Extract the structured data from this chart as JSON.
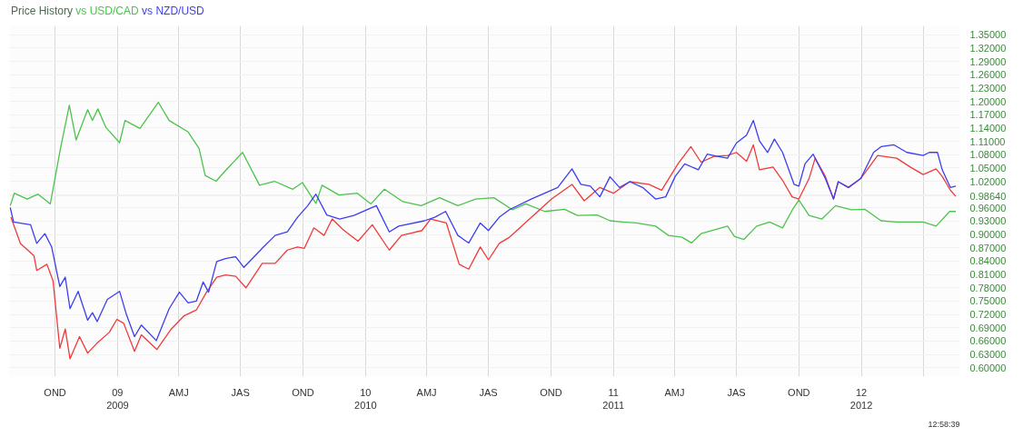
{
  "chart_data": {
    "type": "line",
    "title": "Price History",
    "legend": "top left",
    "grid": true,
    "xlim": [
      "2008-07-26",
      "2012-05-25"
    ],
    "ylim": [
      0.58,
      1.37
    ],
    "xticks": [
      {
        "value": "2008-10-01",
        "label": "OND"
      },
      {
        "value": "2009-01-01",
        "label": "09\n2009"
      },
      {
        "value": "2009-04-01",
        "label": "AMJ"
      },
      {
        "value": "2009-07-01",
        "label": "JAS"
      },
      {
        "value": "2009-10-01",
        "label": "OND"
      },
      {
        "value": "2010-01-01",
        "label": "10\n2010"
      },
      {
        "value": "2010-04-01",
        "label": "AMJ"
      },
      {
        "value": "2010-07-01",
        "label": "JAS"
      },
      {
        "value": "2010-10-01",
        "label": "OND"
      },
      {
        "value": "2011-01-01",
        "label": "11\n2011"
      },
      {
        "value": "2011-04-01",
        "label": "AMJ"
      },
      {
        "value": "2011-07-01",
        "label": "JAS"
      },
      {
        "value": "2011-10-01",
        "label": "OND"
      },
      {
        "value": "2012-01-01",
        "label": "12\n2012"
      },
      {
        "value": "2012-04-01",
        "label": null
      }
    ],
    "yticks": [
      {
        "value": 0.6,
        "label": "0.60000"
      },
      {
        "value": 0.63,
        "label": "0.63000"
      },
      {
        "value": 0.66,
        "label": "0.66000"
      },
      {
        "value": 0.69,
        "label": "0.69000"
      },
      {
        "value": 0.72,
        "label": "0.72000"
      },
      {
        "value": 0.75,
        "label": "0.75000"
      },
      {
        "value": 0.78,
        "label": "0.78000"
      },
      {
        "value": 0.81,
        "label": "0.81000"
      },
      {
        "value": 0.84,
        "label": "0.84000"
      },
      {
        "value": 0.87,
        "label": "0.87000"
      },
      {
        "value": 0.9,
        "label": "0.90000"
      },
      {
        "value": 0.93,
        "label": "0.93000"
      },
      {
        "value": 0.96,
        "label": "0.96000"
      },
      {
        "value": 0.9864,
        "label": "0.98640"
      },
      {
        "value": 0.99,
        "label": null
      },
      {
        "value": 1.02,
        "label": "1.02000"
      },
      {
        "value": 1.05,
        "label": "1.05000"
      },
      {
        "value": 1.08,
        "label": "1.08000"
      },
      {
        "value": 1.11,
        "label": "1.11000"
      },
      {
        "value": 1.14,
        "label": "1.14000"
      },
      {
        "value": 1.17,
        "label": "1.17000"
      },
      {
        "value": 1.2,
        "label": "1.20000"
      },
      {
        "value": 1.23,
        "label": "1.23000"
      },
      {
        "value": 1.26,
        "label": "1.26000"
      },
      {
        "value": 1.29,
        "label": "1.29000"
      },
      {
        "value": 1.32,
        "label": "1.32000"
      },
      {
        "value": 1.35,
        "label": "1.35000"
      }
    ],
    "annotations": [
      "12:58:39"
    ],
    "series": [
      {
        "name": "vs USD/CAD",
        "color": "#4cc34c",
        "x": [
          "2008-07-27",
          "2008-08-02",
          "2008-08-21",
          "2008-09-06",
          "2008-09-24",
          "2008-10-09",
          "2008-10-22",
          "2008-11-01",
          "2008-11-18",
          "2008-11-25",
          "2008-12-03",
          "2008-12-15",
          "2009-01-04",
          "2009-01-12",
          "2009-02-03",
          "2009-03-02",
          "2009-03-18",
          "2009-04-15",
          "2009-05-01",
          "2009-05-10",
          "2009-05-26",
          "2009-06-09",
          "2009-07-04",
          "2009-07-29",
          "2009-08-20",
          "2009-09-16",
          "2009-09-30",
          "2009-10-20",
          "2009-10-29",
          "2009-11-23",
          "2009-12-20",
          "2010-01-09",
          "2010-01-29",
          "2010-02-25",
          "2010-03-24",
          "2010-04-20",
          "2010-05-17",
          "2010-06-12",
          "2010-07-09",
          "2010-08-05",
          "2010-08-25",
          "2010-09-22",
          "2010-10-21",
          "2010-11-09",
          "2010-12-08",
          "2010-12-27",
          "2011-01-15",
          "2011-02-04",
          "2011-03-04",
          "2011-03-23",
          "2011-04-12",
          "2011-04-26",
          "2011-05-10",
          "2011-06-18",
          "2011-06-28",
          "2011-07-12",
          "2011-07-31",
          "2011-08-19",
          "2011-09-07",
          "2011-09-22",
          "2011-10-01",
          "2011-10-16",
          "2011-11-04",
          "2011-11-24",
          "2011-12-17",
          "2012-01-06",
          "2012-01-30",
          "2012-02-22",
          "2012-04-01",
          "2012-04-20",
          "2012-05-10",
          "2012-05-19"
        ],
        "values": [
          0.965,
          0.993,
          0.98,
          0.991,
          0.969,
          1.094,
          1.191,
          1.113,
          1.181,
          1.157,
          1.183,
          1.141,
          1.107,
          1.157,
          1.139,
          1.198,
          1.157,
          1.131,
          1.094,
          1.033,
          1.02,
          1.044,
          1.085,
          1.011,
          1.02,
          1.002,
          1.017,
          0.97,
          1.011,
          0.989,
          0.993,
          0.969,
          1.002,
          0.974,
          0.965,
          0.983,
          0.965,
          0.98,
          0.983,
          0.956,
          0.969,
          0.952,
          0.957,
          0.943,
          0.944,
          0.931,
          0.928,
          0.926,
          0.919,
          0.898,
          0.894,
          0.881,
          0.902,
          0.919,
          0.896,
          0.889,
          0.919,
          0.928,
          0.915,
          0.957,
          0.978,
          0.943,
          0.935,
          0.965,
          0.956,
          0.957,
          0.931,
          0.928,
          0.928,
          0.919,
          0.952,
          0.952
        ]
      },
      {
        "color": "#f03a3a",
        "x": [
          "2008-07-28",
          "2008-08-11",
          "2008-08-31",
          "2008-09-04",
          "2008-09-19",
          "2008-09-28",
          "2008-10-08",
          "2008-10-16",
          "2008-10-23",
          "2008-11-06",
          "2008-11-18",
          "2008-12-01",
          "2008-12-20",
          "2008-12-31",
          "2009-01-10",
          "2009-01-26",
          "2009-02-05",
          "2009-02-28",
          "2009-03-21",
          "2009-04-09",
          "2009-04-27",
          "2009-05-12",
          "2009-05-27",
          "2009-06-09",
          "2009-06-24",
          "2009-07-09",
          "2009-08-02",
          "2009-08-21",
          "2009-09-08",
          "2009-09-23",
          "2009-10-03",
          "2009-10-17",
          "2009-11-01",
          "2009-11-13",
          "2009-11-29",
          "2009-12-21",
          "2010-01-11",
          "2010-02-05",
          "2010-02-23",
          "2010-03-25",
          "2010-04-07",
          "2010-04-30",
          "2010-05-19",
          "2010-06-02",
          "2010-06-19",
          "2010-07-01",
          "2010-07-17",
          "2010-08-01",
          "2010-09-01",
          "2010-10-02",
          "2010-11-01",
          "2010-11-19",
          "2010-12-12",
          "2011-01-01",
          "2011-01-25",
          "2011-02-22",
          "2011-03-13",
          "2011-04-06",
          "2011-04-25",
          "2011-05-10",
          "2011-05-29",
          "2011-06-18",
          "2011-07-01",
          "2011-07-16",
          "2011-07-26",
          "2011-08-04",
          "2011-08-24",
          "2011-09-07",
          "2011-09-21",
          "2011-10-01",
          "2011-10-16",
          "2011-10-25",
          "2011-11-09",
          "2011-11-21",
          "2011-11-28",
          "2011-12-13",
          "2011-12-31",
          "2012-01-25",
          "2012-02-03",
          "2012-02-22",
          "2012-03-13",
          "2012-04-01",
          "2012-04-20",
          "2012-04-29",
          "2012-05-11",
          "2012-05-19"
        ],
        "values": [
          0.939,
          0.88,
          0.852,
          0.819,
          0.833,
          0.796,
          0.644,
          0.687,
          0.62,
          0.67,
          0.633,
          0.654,
          0.68,
          0.709,
          0.7,
          0.637,
          0.674,
          0.641,
          0.687,
          0.717,
          0.73,
          0.77,
          0.804,
          0.809,
          0.806,
          0.78,
          0.835,
          0.835,
          0.865,
          0.872,
          0.869,
          0.915,
          0.898,
          0.935,
          0.911,
          0.885,
          0.922,
          0.865,
          0.898,
          0.909,
          0.935,
          0.926,
          0.833,
          0.822,
          0.872,
          0.843,
          0.88,
          0.894,
          0.937,
          0.98,
          1.013,
          0.976,
          1.006,
          0.993,
          1.019,
          1.013,
          1.0,
          1.059,
          1.098,
          1.063,
          1.076,
          1.078,
          1.085,
          1.065,
          1.102,
          1.046,
          1.052,
          1.022,
          0.985,
          0.98,
          1.026,
          1.072,
          1.031,
          0.98,
          1.019,
          1.006,
          1.026,
          1.078,
          1.076,
          1.072,
          1.052,
          1.035,
          1.048,
          1.031,
          1.0,
          0.986
        ]
      },
      {
        "name": "vs NZD/USD",
        "color": "#3d3df0",
        "x": [
          "2008-07-27",
          "2008-08-01",
          "2008-08-26",
          "2008-09-04",
          "2008-09-16",
          "2008-09-26",
          "2008-10-08",
          "2008-10-16",
          "2008-10-23",
          "2008-11-04",
          "2008-11-18",
          "2008-11-25",
          "2008-12-02",
          "2008-12-17",
          "2009-01-04",
          "2009-01-14",
          "2009-01-26",
          "2009-02-05",
          "2009-02-27",
          "2009-03-18",
          "2009-04-02",
          "2009-04-15",
          "2009-04-27",
          "2009-05-07",
          "2009-05-15",
          "2009-05-27",
          "2009-06-09",
          "2009-06-24",
          "2009-07-06",
          "2009-08-02",
          "2009-08-21",
          "2009-09-08",
          "2009-09-23",
          "2009-10-08",
          "2009-10-20",
          "2009-11-05",
          "2009-11-24",
          "2009-12-15",
          "2010-01-17",
          "2010-02-05",
          "2010-02-19",
          "2010-03-29",
          "2010-04-13",
          "2010-04-29",
          "2010-05-17",
          "2010-06-02",
          "2010-06-19",
          "2010-07-01",
          "2010-07-17",
          "2010-08-01",
          "2010-09-02",
          "2010-10-11",
          "2010-11-01",
          "2010-11-14",
          "2010-11-28",
          "2010-12-12",
          "2010-12-27",
          "2011-01-10",
          "2011-01-25",
          "2011-02-13",
          "2011-03-04",
          "2011-03-19",
          "2011-04-02",
          "2011-04-16",
          "2011-05-06",
          "2011-05-19",
          "2011-06-03",
          "2011-06-18",
          "2011-07-01",
          "2011-07-16",
          "2011-07-26",
          "2011-08-04",
          "2011-08-16",
          "2011-08-26",
          "2011-09-07",
          "2011-09-24",
          "2011-10-01",
          "2011-10-10",
          "2011-10-22",
          "2011-11-09",
          "2011-11-21",
          "2011-11-28",
          "2011-12-13",
          "2011-12-31",
          "2012-01-19",
          "2012-01-30",
          "2012-02-18",
          "2012-03-08",
          "2012-04-01",
          "2012-04-10",
          "2012-04-22",
          "2012-04-29",
          "2012-05-11",
          "2012-05-19"
        ],
        "values": [
          0.961,
          0.928,
          0.922,
          0.88,
          0.902,
          0.872,
          0.783,
          0.804,
          0.733,
          0.772,
          0.707,
          0.724,
          0.704,
          0.754,
          0.772,
          0.72,
          0.67,
          0.696,
          0.661,
          0.733,
          0.77,
          0.746,
          0.75,
          0.793,
          0.77,
          0.839,
          0.846,
          0.85,
          0.826,
          0.869,
          0.898,
          0.906,
          0.939,
          0.965,
          0.991,
          0.944,
          0.935,
          0.943,
          0.965,
          0.906,
          0.919,
          0.931,
          0.939,
          0.952,
          0.898,
          0.881,
          0.926,
          0.909,
          0.939,
          0.956,
          0.98,
          1.006,
          1.048,
          1.013,
          1.009,
          0.985,
          1.03,
          1.006,
          1.019,
          1.006,
          0.98,
          0.985,
          1.031,
          1.059,
          1.046,
          1.081,
          1.076,
          1.072,
          1.106,
          1.124,
          1.157,
          1.111,
          1.085,
          1.115,
          1.085,
          1.013,
          1.009,
          1.059,
          1.081,
          1.026,
          0.98,
          1.019,
          1.006,
          1.026,
          1.085,
          1.098,
          1.102,
          1.085,
          1.078,
          1.085,
          1.085,
          1.046,
          1.006,
          1.009
        ]
      }
    ]
  }
}
